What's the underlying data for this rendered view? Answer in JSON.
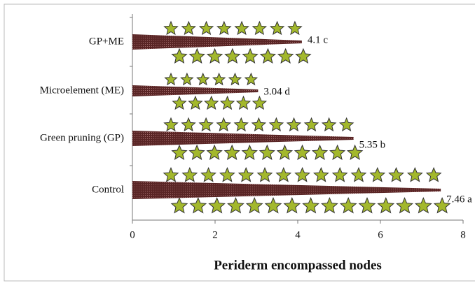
{
  "chart_data": {
    "type": "bar",
    "orientation": "horizontal",
    "x_label": "Periderm encompassed nodes",
    "categories": [
      "GP+ME",
      "Microelement (ME)",
      "Green pruning (GP)",
      "Control"
    ],
    "values": [
      4.1,
      3.04,
      5.35,
      7.46
    ],
    "value_labels": [
      "4.1 c",
      "3.04 d",
      "5.35 b",
      "7.46 a"
    ],
    "color": "#5a2626",
    "leaf_color": "#a3b82c",
    "xlim": [
      0,
      8
    ],
    "xticks": [
      0,
      2,
      4,
      6,
      8
    ],
    "grid": false
  }
}
